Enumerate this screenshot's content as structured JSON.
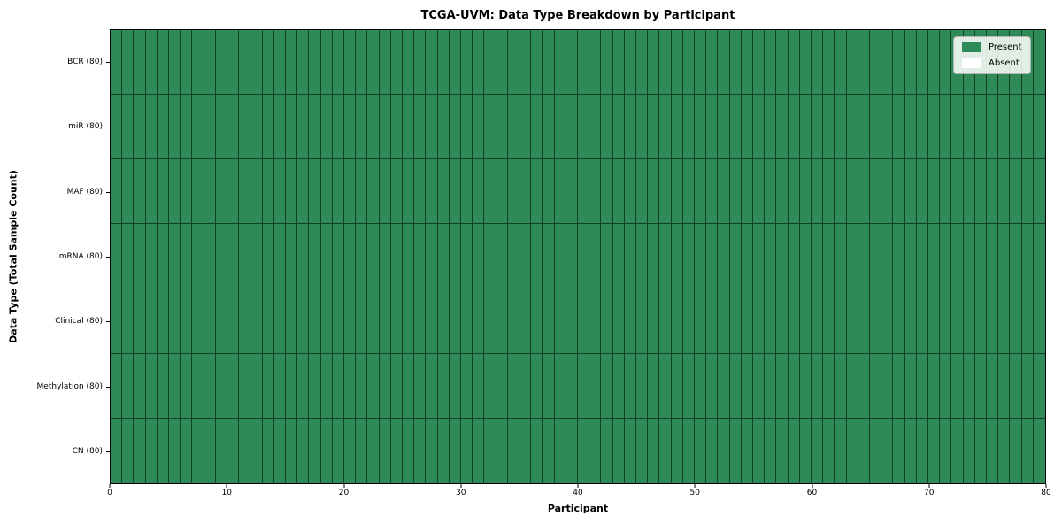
{
  "colors": {
    "present": "#2e8b57",
    "absent": "#ffffff",
    "cell_border": "rgba(0,0,0,0.55)",
    "spine": "#000000",
    "legend_border": "#b3b3b3"
  },
  "legend": {
    "items": [
      {
        "label": "Present",
        "color_key": "present"
      },
      {
        "label": "Absent",
        "color_key": "absent"
      }
    ]
  },
  "chart_data": {
    "type": "heatmap",
    "title": "TCGA-UVM: Data Type Breakdown by Participant",
    "xlabel": "Participant",
    "ylabel": "Data Type (Total Sample Count)",
    "xlim": [
      0,
      80
    ],
    "x_ticks": [
      0,
      10,
      20,
      30,
      40,
      50,
      60,
      70,
      80
    ],
    "n_participants": 80,
    "rows": [
      {
        "name": "BCR (80)",
        "present_count": 80
      },
      {
        "name": "miR (80)",
        "present_count": 80
      },
      {
        "name": "MAF (80)",
        "present_count": 80
      },
      {
        "name": "mRNA (80)",
        "present_count": 80
      },
      {
        "name": "Clinical (80)",
        "present_count": 80
      },
      {
        "name": "Methylation (80)",
        "present_count": 80
      },
      {
        "name": "CN (80)",
        "present_count": 80
      }
    ],
    "legend_position": "upper right",
    "grid": "on"
  }
}
